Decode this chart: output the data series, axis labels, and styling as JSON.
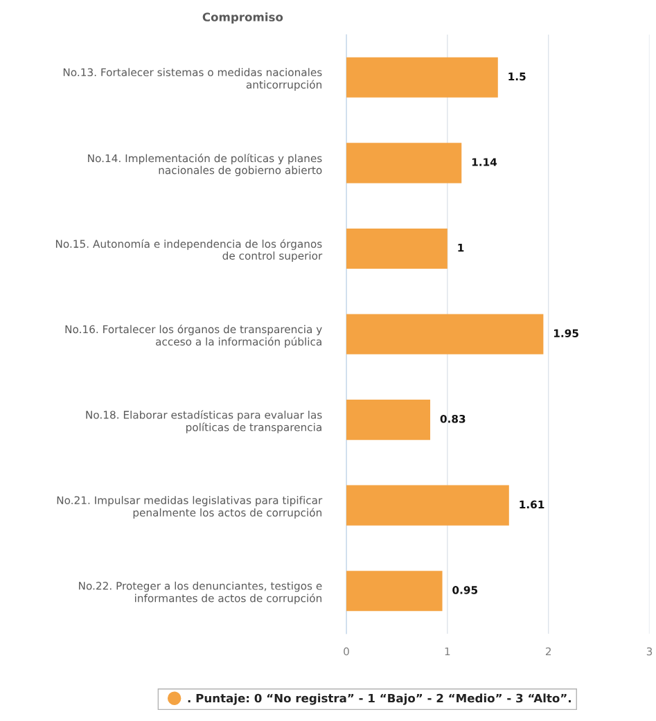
{
  "chart_data": {
    "type": "bar",
    "orientation": "horizontal",
    "ylabel": "Compromiso",
    "categories": [
      "No.13. Fortalecer sistemas o medidas nacionales\nanticorrupción",
      "No.14. Implementación de políticas y planes\nnacionales de gobierno abierto",
      "No.15. Autonomía e independencia de los órganos\nde control superior",
      "No.16. Fortalecer los órganos de transparencia y\nacceso a la información pública",
      "No.18. Elaborar estadísticas para evaluar las\npolíticas de transparencia",
      "No.21. Impulsar medidas legislativas para tipificar\npenalmente los actos de corrupción",
      "No.22. Proteger a los denunciantes, testigos e\ninformantes de actos de corrupción"
    ],
    "series": [
      {
        "name": ". Puntaje: 0 “No registra” - 1 “Bajo” - 2 “Medio” - 3 “Alto”.",
        "color": "#f4a343",
        "values": [
          1.5,
          1.14,
          1,
          1.95,
          0.83,
          1.61,
          0.95
        ]
      }
    ],
    "xlim": [
      0,
      3
    ],
    "xticks": [
      0,
      1,
      2,
      3
    ],
    "grid": "x",
    "legend": "bottom",
    "data_labels": true
  }
}
